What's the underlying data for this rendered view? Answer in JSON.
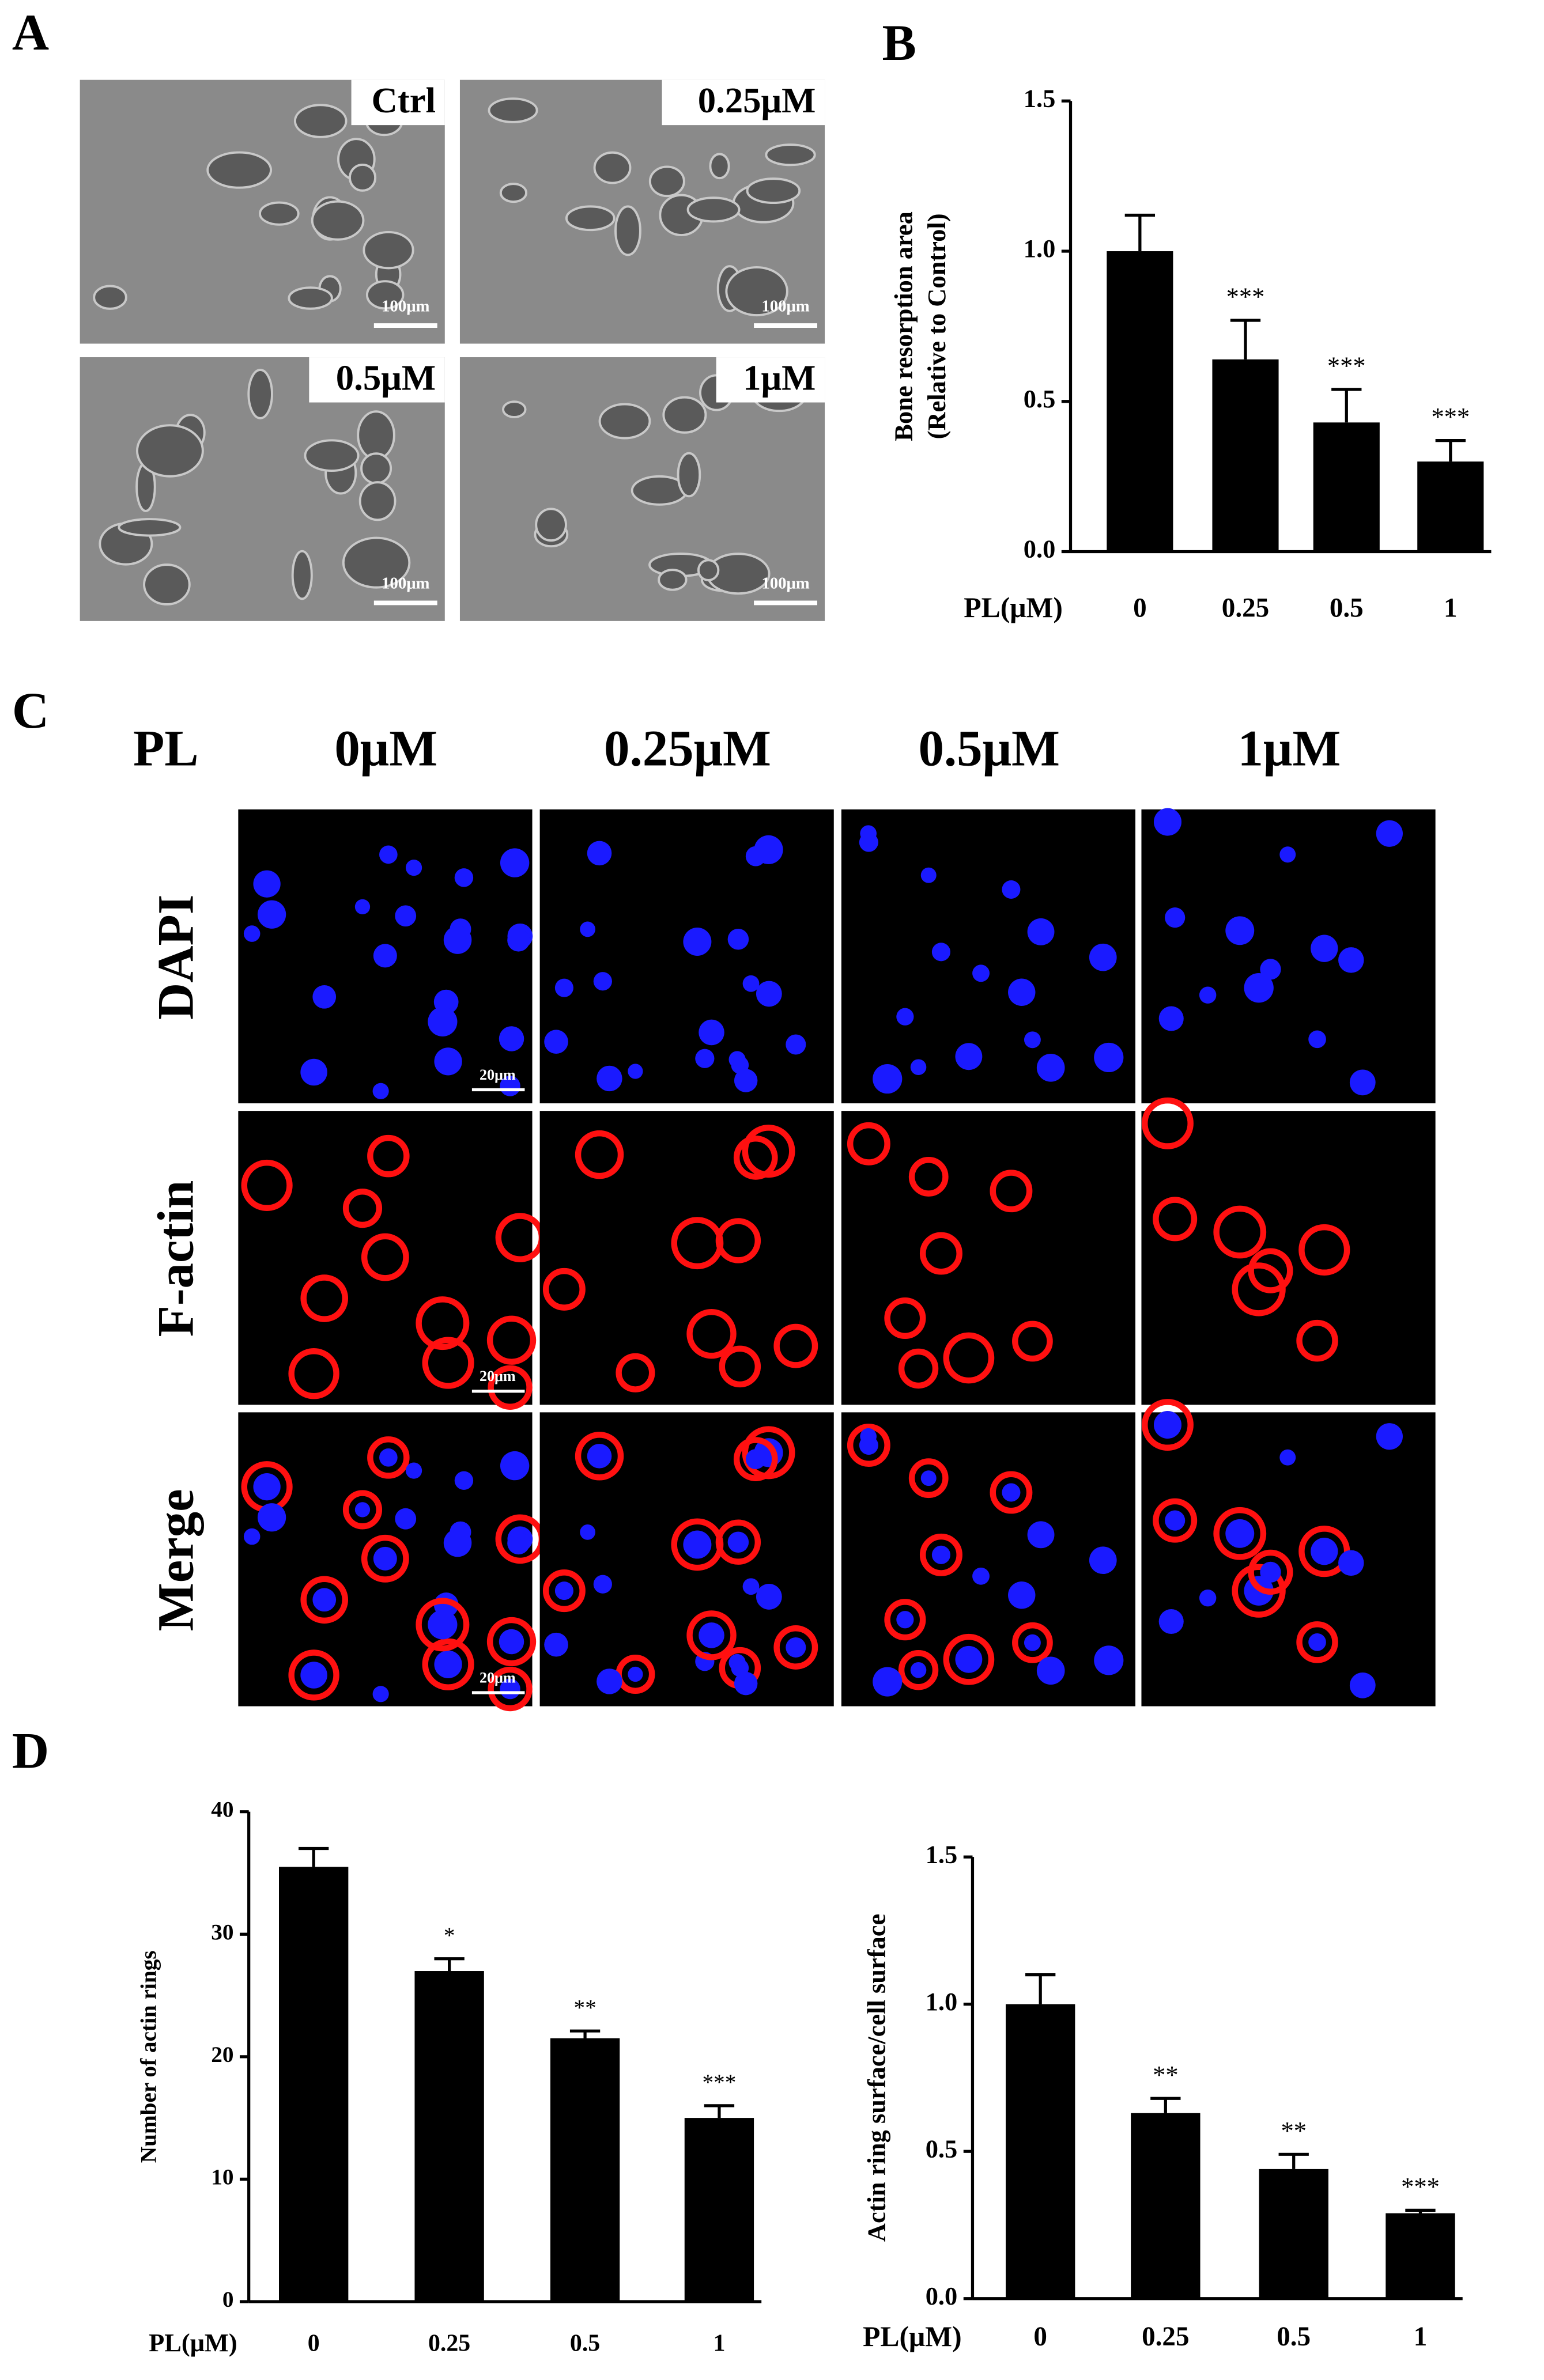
{
  "panel_labels": [
    "A",
    "B",
    "C",
    "D"
  ],
  "sem_images": {
    "labels": [
      "Ctrl",
      "0.25μM",
      "0.5μM",
      "1μM"
    ],
    "scale_bar": "100μm"
  },
  "confocal": {
    "row_header": "PL",
    "columns": [
      "0μM",
      "0.25μM",
      "0.5μM",
      "1μM"
    ],
    "rows": [
      "DAPI",
      "F-actin",
      "Merge"
    ],
    "scale_bar": "20μm"
  },
  "chart_data": [
    {
      "type": "bar",
      "ylabel": [
        "Bone resorption area",
        "(Relative to Control)"
      ],
      "xlabel": "PL(μM)",
      "categories": [
        "0",
        "0.25",
        "0.5",
        "1"
      ],
      "values": [
        1.0,
        0.64,
        0.43,
        0.3
      ],
      "errors": [
        0.12,
        0.13,
        0.11,
        0.07
      ],
      "significance": [
        null,
        "***",
        "***",
        "***"
      ],
      "color": "#000000",
      "ylim": [
        0,
        1.5
      ],
      "yticks": [
        {
          "value": 0,
          "label": "0.0"
        },
        {
          "value": 0.5,
          "label": "0.5"
        },
        {
          "value": 1,
          "label": "1.0"
        },
        {
          "value": 1.5,
          "label": "1.5"
        }
      ]
    },
    {
      "type": "bar",
      "ylabel": [
        "Number of actin rings"
      ],
      "xlabel": "PL(μM)",
      "categories": [
        "0",
        "0.25",
        "0.5",
        "1"
      ],
      "values": [
        35.5,
        27,
        21.5,
        15
      ],
      "errors": [
        1.5,
        1.0,
        0.6,
        1.0
      ],
      "significance": [
        null,
        "*",
        "**",
        "***"
      ],
      "color": "#000000",
      "ylim": [
        0,
        40
      ],
      "yticks": [
        0,
        10,
        20,
        30,
        40
      ]
    },
    {
      "type": "bar",
      "ylabel": [
        "Actin ring surface/cell surface"
      ],
      "xlabel": "PL(μM)",
      "categories": [
        "0",
        "0.25",
        "0.5",
        "1"
      ],
      "values": [
        1.0,
        0.63,
        0.44,
        0.29
      ],
      "errors": [
        0.1,
        0.05,
        0.05,
        0.01
      ],
      "significance": [
        null,
        "**",
        "**",
        "***"
      ],
      "color": "#000000",
      "ylim": [
        0,
        1.5
      ],
      "yticks": [
        {
          "value": 0,
          "label": "0.0"
        },
        {
          "value": 0.5,
          "label": "0.5"
        },
        {
          "value": 1,
          "label": "1.0"
        },
        {
          "value": 1.5,
          "label": "1.5"
        }
      ]
    }
  ]
}
